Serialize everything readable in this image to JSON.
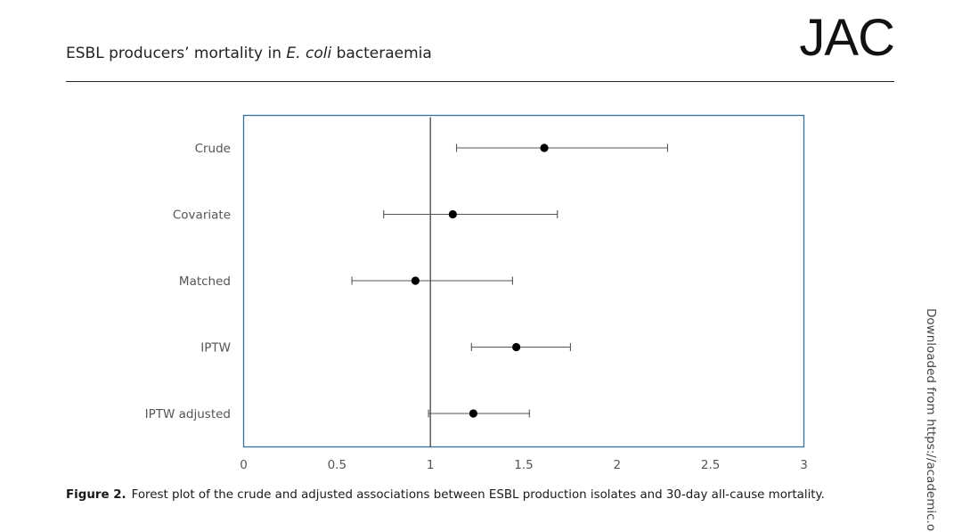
{
  "header": {
    "running_title_prefix": "ESBL producers’ mortality in ",
    "running_title_italic": "E. coli",
    "running_title_suffix": " bacteraemia",
    "journal_logo": "JAC"
  },
  "chart_data": {
    "type": "forest",
    "categories": [
      "Crude",
      "Covariate",
      "Matched",
      "IPTW",
      "IPTW adjusted"
    ],
    "estimates": [
      1.61,
      1.12,
      0.92,
      1.46,
      1.23
    ],
    "ci_lower": [
      1.14,
      0.75,
      0.58,
      1.22,
      0.99
    ],
    "ci_upper": [
      2.27,
      1.68,
      1.44,
      1.75,
      1.53
    ],
    "reference_line": 1,
    "xlim": [
      0,
      3
    ],
    "xticks": [
      0,
      0.5,
      1,
      1.5,
      2,
      2.5,
      3
    ],
    "xtick_labels": [
      "0",
      "0.5",
      "1",
      "1.5",
      "2",
      "2.5",
      "3"
    ],
    "title": "",
    "xlabel": "",
    "ylabel": "",
    "grid": false,
    "frame_color": "#3a6fa0",
    "marker_color": "#000000",
    "whisker_color": "#555555"
  },
  "caption": {
    "label": "Figure 2.",
    "text": "Forest plot of the crude and adjusted associations between ESBL production isolates and 30-day all-cause mortality."
  },
  "sidebar": {
    "download_note": "Downloaded from https://academic.oup.c"
  }
}
